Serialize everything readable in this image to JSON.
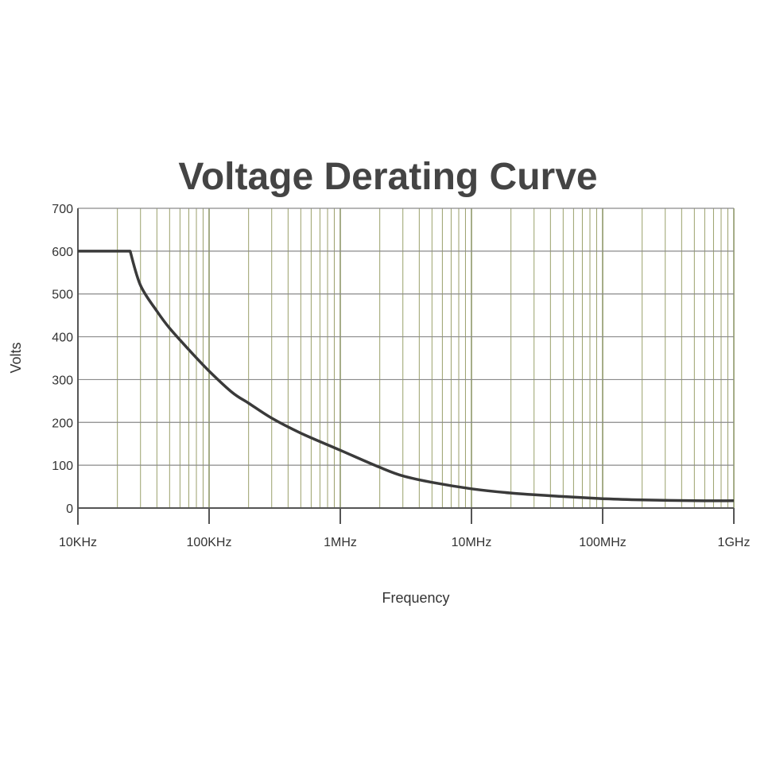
{
  "chart_data": {
    "type": "line",
    "title": "Voltage Derating Curve",
    "xlabel": "Frequency",
    "ylabel": "Volts",
    "x_scale": "log",
    "x_unit": "Hz",
    "xlim": [
      10000,
      1000000000
    ],
    "ylim": [
      0,
      700
    ],
    "x_ticks": [
      {
        "value": 10000,
        "label": "10KHz"
      },
      {
        "value": 100000,
        "label": "100KHz"
      },
      {
        "value": 1000000,
        "label": "1MHz"
      },
      {
        "value": 10000000,
        "label": "10MHz"
      },
      {
        "value": 100000000,
        "label": "100MHz"
      },
      {
        "value": 1000000000,
        "label": "1GHz"
      }
    ],
    "y_ticks": [
      0,
      100,
      200,
      300,
      400,
      500,
      600,
      700
    ],
    "grid": true,
    "series": [
      {
        "x": [
          10000,
          25000,
          30000,
          40000,
          50000,
          70000,
          100000,
          150000,
          200000,
          300000,
          500000,
          1000000,
          2000000,
          3000000,
          5000000,
          10000000,
          20000000,
          50000000,
          100000000,
          200000000,
          500000000,
          1000000000
        ],
        "y": [
          600,
          600,
          520,
          460,
          420,
          370,
          320,
          270,
          245,
          210,
          175,
          135,
          95,
          75,
          60,
          45,
          35,
          27,
          22,
          19,
          17,
          17
        ],
        "color": "#3a3a3a"
      }
    ]
  }
}
